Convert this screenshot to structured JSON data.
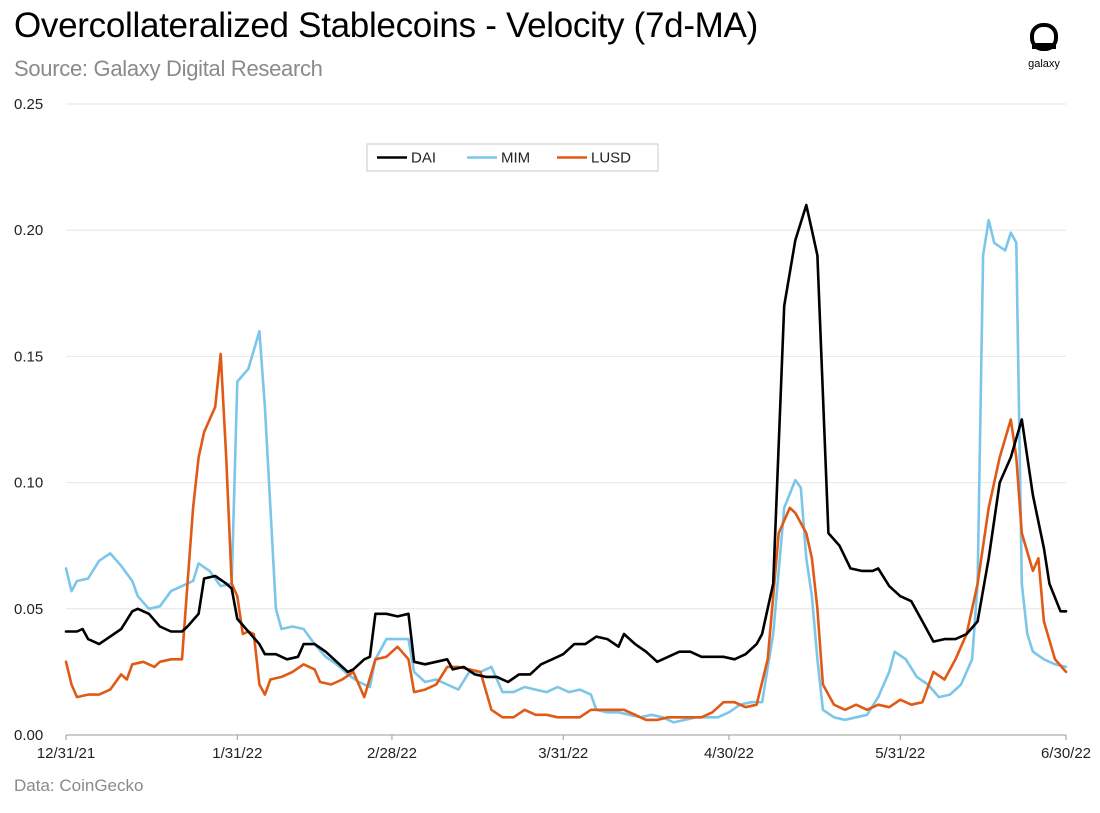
{
  "header": {
    "title": "Overcollateralized Stablecoins - Velocity (7d-MA)",
    "subtitle": "Source: Galaxy Digital Research"
  },
  "logo": {
    "text": "galaxy",
    "icon": "galaxy-logo-icon"
  },
  "footer": {
    "note": "Data: CoinGecko"
  },
  "chart_data": {
    "type": "line",
    "x_unit": "days since 12/31/21",
    "xlim": [
      0,
      181
    ],
    "ylim": [
      0,
      0.25
    ],
    "yticks": [
      0,
      0.05,
      0.1,
      0.15,
      0.2,
      0.25
    ],
    "ytick_labels": [
      "0.00",
      "0.05",
      "0.10",
      "0.15",
      "0.20",
      "0.25"
    ],
    "xticks": [
      0,
      31,
      59,
      90,
      120,
      151,
      181
    ],
    "xtick_labels": [
      "12/31/21",
      "1/31/22",
      "2/28/22",
      "3/31/22",
      "4/30/22",
      "5/31/22",
      "6/30/22"
    ],
    "grid": "horizontal",
    "legend_position": "top-center",
    "series": [
      {
        "name": "DAI",
        "color": "#000000",
        "points": [
          [
            0,
            0.041
          ],
          [
            2,
            0.041
          ],
          [
            3,
            0.042
          ],
          [
            4,
            0.038
          ],
          [
            6,
            0.036
          ],
          [
            8,
            0.039
          ],
          [
            10,
            0.042
          ],
          [
            12,
            0.049
          ],
          [
            13,
            0.05
          ],
          [
            15,
            0.048
          ],
          [
            17,
            0.043
          ],
          [
            19,
            0.041
          ],
          [
            21,
            0.041
          ],
          [
            22,
            0.043
          ],
          [
            24,
            0.048
          ],
          [
            25,
            0.062
          ],
          [
            27,
            0.063
          ],
          [
            29,
            0.06
          ],
          [
            30,
            0.058
          ],
          [
            31,
            0.046
          ],
          [
            33,
            0.041
          ],
          [
            35,
            0.036
          ],
          [
            36,
            0.032
          ],
          [
            38,
            0.032
          ],
          [
            40,
            0.03
          ],
          [
            42,
            0.031
          ],
          [
            43,
            0.036
          ],
          [
            45,
            0.036
          ],
          [
            47,
            0.033
          ],
          [
            49,
            0.029
          ],
          [
            51,
            0.025
          ],
          [
            52,
            0.026
          ],
          [
            54,
            0.03
          ],
          [
            55,
            0.031
          ],
          [
            56,
            0.048
          ],
          [
            58,
            0.048
          ],
          [
            60,
            0.047
          ],
          [
            62,
            0.048
          ],
          [
            63,
            0.029
          ],
          [
            65,
            0.028
          ],
          [
            67,
            0.029
          ],
          [
            69,
            0.03
          ],
          [
            70,
            0.026
          ],
          [
            72,
            0.027
          ],
          [
            74,
            0.024
          ],
          [
            76,
            0.023
          ],
          [
            78,
            0.023
          ],
          [
            80,
            0.021
          ],
          [
            82,
            0.024
          ],
          [
            84,
            0.024
          ],
          [
            86,
            0.028
          ],
          [
            88,
            0.03
          ],
          [
            90,
            0.032
          ],
          [
            92,
            0.036
          ],
          [
            94,
            0.036
          ],
          [
            96,
            0.039
          ],
          [
            98,
            0.038
          ],
          [
            100,
            0.035
          ],
          [
            101,
            0.04
          ],
          [
            103,
            0.036
          ],
          [
            105,
            0.033
          ],
          [
            107,
            0.029
          ],
          [
            109,
            0.031
          ],
          [
            111,
            0.033
          ],
          [
            113,
            0.033
          ],
          [
            115,
            0.031
          ],
          [
            117,
            0.031
          ],
          [
            119,
            0.031
          ],
          [
            121,
            0.03
          ],
          [
            123,
            0.032
          ],
          [
            125,
            0.036
          ],
          [
            126,
            0.04
          ],
          [
            128,
            0.06
          ],
          [
            130,
            0.17
          ],
          [
            132,
            0.196
          ],
          [
            134,
            0.21
          ],
          [
            135,
            0.2
          ],
          [
            136,
            0.19
          ],
          [
            138,
            0.08
          ],
          [
            140,
            0.075
          ],
          [
            142,
            0.066
          ],
          [
            144,
            0.065
          ],
          [
            146,
            0.065
          ],
          [
            147,
            0.066
          ],
          [
            149,
            0.059
          ],
          [
            151,
            0.055
          ],
          [
            153,
            0.053
          ],
          [
            155,
            0.045
          ],
          [
            157,
            0.037
          ],
          [
            159,
            0.038
          ],
          [
            161,
            0.038
          ],
          [
            163,
            0.04
          ],
          [
            165,
            0.045
          ],
          [
            167,
            0.07
          ],
          [
            169,
            0.1
          ],
          [
            171,
            0.11
          ],
          [
            173,
            0.125
          ],
          [
            175,
            0.095
          ],
          [
            177,
            0.074
          ],
          [
            178,
            0.06
          ],
          [
            180,
            0.049
          ],
          [
            181,
            0.049
          ]
        ]
      },
      {
        "name": "MIM",
        "color": "#7cc6ea",
        "points": [
          [
            0,
            0.066
          ],
          [
            1,
            0.057
          ],
          [
            2,
            0.061
          ],
          [
            4,
            0.062
          ],
          [
            6,
            0.069
          ],
          [
            8,
            0.072
          ],
          [
            10,
            0.067
          ],
          [
            12,
            0.061
          ],
          [
            13,
            0.055
          ],
          [
            15,
            0.05
          ],
          [
            17,
            0.051
          ],
          [
            19,
            0.057
          ],
          [
            21,
            0.059
          ],
          [
            23,
            0.061
          ],
          [
            24,
            0.068
          ],
          [
            26,
            0.065
          ],
          [
            28,
            0.059
          ],
          [
            30,
            0.06
          ],
          [
            31,
            0.14
          ],
          [
            33,
            0.145
          ],
          [
            35,
            0.16
          ],
          [
            36,
            0.13
          ],
          [
            37,
            0.09
          ],
          [
            38,
            0.05
          ],
          [
            39,
            0.042
          ],
          [
            41,
            0.043
          ],
          [
            43,
            0.042
          ],
          [
            45,
            0.036
          ],
          [
            47,
            0.031
          ],
          [
            49,
            0.028
          ],
          [
            51,
            0.024
          ],
          [
            53,
            0.021
          ],
          [
            55,
            0.019
          ],
          [
            56,
            0.03
          ],
          [
            58,
            0.038
          ],
          [
            60,
            0.038
          ],
          [
            62,
            0.038
          ],
          [
            63,
            0.025
          ],
          [
            65,
            0.021
          ],
          [
            67,
            0.022
          ],
          [
            69,
            0.02
          ],
          [
            71,
            0.018
          ],
          [
            73,
            0.025
          ],
          [
            75,
            0.025
          ],
          [
            77,
            0.027
          ],
          [
            79,
            0.017
          ],
          [
            81,
            0.017
          ],
          [
            83,
            0.019
          ],
          [
            85,
            0.018
          ],
          [
            87,
            0.017
          ],
          [
            89,
            0.019
          ],
          [
            91,
            0.017
          ],
          [
            93,
            0.018
          ],
          [
            95,
            0.016
          ],
          [
            96,
            0.01
          ],
          [
            98,
            0.009
          ],
          [
            100,
            0.009
          ],
          [
            102,
            0.008
          ],
          [
            104,
            0.007
          ],
          [
            106,
            0.008
          ],
          [
            108,
            0.007
          ],
          [
            110,
            0.005
          ],
          [
            112,
            0.006
          ],
          [
            114,
            0.007
          ],
          [
            116,
            0.007
          ],
          [
            118,
            0.007
          ],
          [
            120,
            0.009
          ],
          [
            122,
            0.012
          ],
          [
            124,
            0.013
          ],
          [
            126,
            0.013
          ],
          [
            128,
            0.04
          ],
          [
            130,
            0.09
          ],
          [
            132,
            0.101
          ],
          [
            133,
            0.098
          ],
          [
            134,
            0.07
          ],
          [
            135,
            0.055
          ],
          [
            136,
            0.03
          ],
          [
            137,
            0.01
          ],
          [
            139,
            0.007
          ],
          [
            141,
            0.006
          ],
          [
            143,
            0.007
          ],
          [
            145,
            0.008
          ],
          [
            147,
            0.015
          ],
          [
            149,
            0.025
          ],
          [
            150,
            0.033
          ],
          [
            152,
            0.03
          ],
          [
            154,
            0.023
          ],
          [
            156,
            0.02
          ],
          [
            158,
            0.015
          ],
          [
            160,
            0.016
          ],
          [
            162,
            0.02
          ],
          [
            164,
            0.03
          ],
          [
            165,
            0.06
          ],
          [
            166,
            0.19
          ],
          [
            167,
            0.204
          ],
          [
            168,
            0.195
          ],
          [
            170,
            0.192
          ],
          [
            171,
            0.199
          ],
          [
            172,
            0.195
          ],
          [
            173,
            0.06
          ],
          [
            174,
            0.04
          ],
          [
            175,
            0.033
          ],
          [
            177,
            0.03
          ],
          [
            179,
            0.028
          ],
          [
            181,
            0.027
          ]
        ]
      },
      {
        "name": "LUSD",
        "color": "#e05a16",
        "points": [
          [
            0,
            0.029
          ],
          [
            1,
            0.02
          ],
          [
            2,
            0.015
          ],
          [
            4,
            0.016
          ],
          [
            6,
            0.016
          ],
          [
            8,
            0.018
          ],
          [
            10,
            0.024
          ],
          [
            11,
            0.022
          ],
          [
            12,
            0.028
          ],
          [
            14,
            0.029
          ],
          [
            16,
            0.027
          ],
          [
            17,
            0.029
          ],
          [
            19,
            0.03
          ],
          [
            21,
            0.03
          ],
          [
            22,
            0.06
          ],
          [
            23,
            0.09
          ],
          [
            24,
            0.11
          ],
          [
            25,
            0.12
          ],
          [
            27,
            0.13
          ],
          [
            28,
            0.151
          ],
          [
            29,
            0.11
          ],
          [
            30,
            0.06
          ],
          [
            31,
            0.055
          ],
          [
            32,
            0.04
          ],
          [
            33,
            0.041
          ],
          [
            34,
            0.04
          ],
          [
            35,
            0.02
          ],
          [
            36,
            0.016
          ],
          [
            37,
            0.022
          ],
          [
            39,
            0.023
          ],
          [
            41,
            0.025
          ],
          [
            43,
            0.028
          ],
          [
            45,
            0.026
          ],
          [
            46,
            0.021
          ],
          [
            48,
            0.02
          ],
          [
            50,
            0.022
          ],
          [
            52,
            0.025
          ],
          [
            54,
            0.015
          ],
          [
            56,
            0.03
          ],
          [
            58,
            0.031
          ],
          [
            60,
            0.035
          ],
          [
            62,
            0.03
          ],
          [
            63,
            0.017
          ],
          [
            65,
            0.018
          ],
          [
            67,
            0.02
          ],
          [
            69,
            0.027
          ],
          [
            71,
            0.027
          ],
          [
            73,
            0.026
          ],
          [
            75,
            0.025
          ],
          [
            77,
            0.01
          ],
          [
            79,
            0.007
          ],
          [
            81,
            0.007
          ],
          [
            83,
            0.01
          ],
          [
            85,
            0.008
          ],
          [
            87,
            0.008
          ],
          [
            89,
            0.007
          ],
          [
            91,
            0.007
          ],
          [
            93,
            0.007
          ],
          [
            95,
            0.01
          ],
          [
            97,
            0.01
          ],
          [
            99,
            0.01
          ],
          [
            101,
            0.01
          ],
          [
            103,
            0.008
          ],
          [
            105,
            0.006
          ],
          [
            107,
            0.006
          ],
          [
            109,
            0.007
          ],
          [
            111,
            0.007
          ],
          [
            113,
            0.007
          ],
          [
            115,
            0.007
          ],
          [
            117,
            0.009
          ],
          [
            119,
            0.013
          ],
          [
            121,
            0.013
          ],
          [
            123,
            0.011
          ],
          [
            125,
            0.012
          ],
          [
            127,
            0.03
          ],
          [
            129,
            0.08
          ],
          [
            131,
            0.09
          ],
          [
            132,
            0.088
          ],
          [
            134,
            0.08
          ],
          [
            135,
            0.07
          ],
          [
            136,
            0.05
          ],
          [
            137,
            0.02
          ],
          [
            139,
            0.012
          ],
          [
            141,
            0.01
          ],
          [
            143,
            0.012
          ],
          [
            145,
            0.01
          ],
          [
            147,
            0.012
          ],
          [
            149,
            0.011
          ],
          [
            151,
            0.014
          ],
          [
            153,
            0.012
          ],
          [
            155,
            0.013
          ],
          [
            157,
            0.025
          ],
          [
            159,
            0.022
          ],
          [
            161,
            0.03
          ],
          [
            163,
            0.04
          ],
          [
            165,
            0.06
          ],
          [
            167,
            0.09
          ],
          [
            169,
            0.11
          ],
          [
            171,
            0.125
          ],
          [
            172,
            0.11
          ],
          [
            173,
            0.08
          ],
          [
            175,
            0.065
          ],
          [
            176,
            0.07
          ],
          [
            177,
            0.045
          ],
          [
            179,
            0.03
          ],
          [
            181,
            0.025
          ]
        ]
      }
    ]
  }
}
